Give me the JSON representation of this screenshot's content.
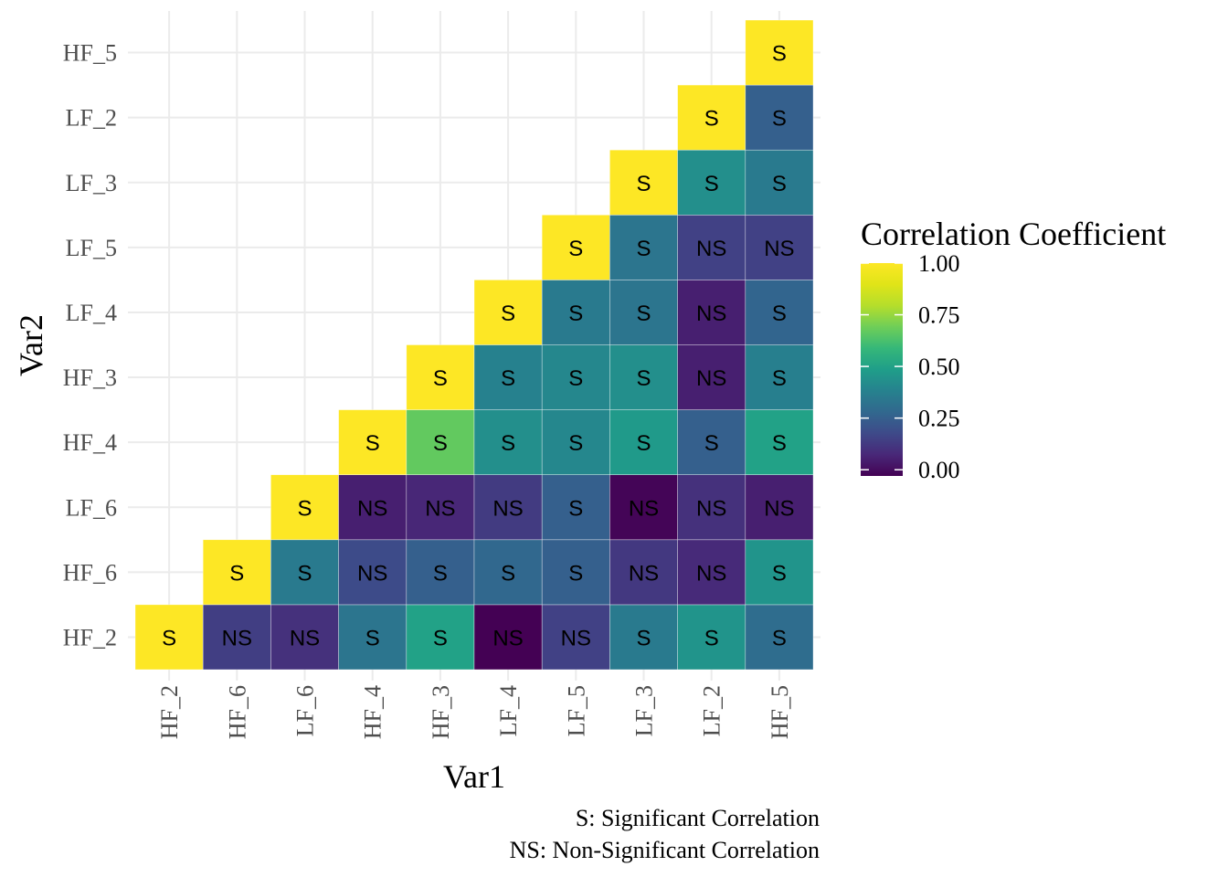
{
  "chart_data": {
    "type": "heatmap",
    "title": "",
    "xlabel": "Var1",
    "ylabel": "Var2",
    "x_categories": [
      "HF_2",
      "HF_6",
      "LF_6",
      "HF_4",
      "HF_3",
      "LF_4",
      "LF_5",
      "LF_3",
      "LF_2",
      "HF_5"
    ],
    "y_categories": [
      "HF_2",
      "HF_6",
      "LF_6",
      "HF_4",
      "HF_3",
      "LF_4",
      "LF_5",
      "LF_3",
      "LF_2",
      "HF_5"
    ],
    "grid": true,
    "legend": {
      "title": "Correlation Coefficient",
      "placement": "right",
      "ticks": [
        1.0,
        0.75,
        0.5,
        0.25,
        0.0
      ],
      "tick_labels": [
        "1.00",
        "0.75",
        "0.50",
        "0.25",
        "0.00"
      ],
      "range": [
        -0.03,
        1.0
      ]
    },
    "caption": [
      "S: Significant Correlation",
      "NS: Non-Significant Correlation"
    ],
    "cells": [
      {
        "x": "HF_2",
        "y": "HF_2",
        "value": 1.0,
        "label": "S"
      },
      {
        "x": "HF_6",
        "y": "HF_2",
        "value": 0.14,
        "label": "NS"
      },
      {
        "x": "LF_6",
        "y": "HF_2",
        "value": 0.1,
        "label": "NS"
      },
      {
        "x": "HF_4",
        "y": "HF_2",
        "value": 0.33,
        "label": "S"
      },
      {
        "x": "HF_3",
        "y": "HF_2",
        "value": 0.5,
        "label": "S"
      },
      {
        "x": "LF_4",
        "y": "HF_2",
        "value": -0.03,
        "label": "NS"
      },
      {
        "x": "LF_5",
        "y": "HF_2",
        "value": 0.15,
        "label": "NS"
      },
      {
        "x": "LF_3",
        "y": "HF_2",
        "value": 0.35,
        "label": "S"
      },
      {
        "x": "LF_2",
        "y": "HF_2",
        "value": 0.45,
        "label": "S"
      },
      {
        "x": "HF_5",
        "y": "HF_2",
        "value": 0.3,
        "label": "S"
      },
      {
        "x": "HF_6",
        "y": "HF_6",
        "value": 1.0,
        "label": "S"
      },
      {
        "x": "LF_6",
        "y": "HF_6",
        "value": 0.35,
        "label": "S"
      },
      {
        "x": "HF_4",
        "y": "HF_6",
        "value": 0.18,
        "label": "NS"
      },
      {
        "x": "HF_3",
        "y": "HF_6",
        "value": 0.25,
        "label": "S"
      },
      {
        "x": "LF_4",
        "y": "HF_6",
        "value": 0.28,
        "label": "S"
      },
      {
        "x": "LF_5",
        "y": "HF_6",
        "value": 0.25,
        "label": "S"
      },
      {
        "x": "LF_3",
        "y": "HF_6",
        "value": 0.12,
        "label": "NS"
      },
      {
        "x": "LF_2",
        "y": "HF_6",
        "value": 0.08,
        "label": "NS"
      },
      {
        "x": "HF_5",
        "y": "HF_6",
        "value": 0.45,
        "label": "S"
      },
      {
        "x": "LF_6",
        "y": "LF_6",
        "value": 1.0,
        "label": "S"
      },
      {
        "x": "HF_4",
        "y": "LF_6",
        "value": 0.05,
        "label": "NS"
      },
      {
        "x": "HF_3",
        "y": "LF_6",
        "value": 0.07,
        "label": "NS"
      },
      {
        "x": "LF_4",
        "y": "LF_6",
        "value": 0.13,
        "label": "NS"
      },
      {
        "x": "LF_5",
        "y": "LF_6",
        "value": 0.25,
        "label": "S"
      },
      {
        "x": "LF_3",
        "y": "LF_6",
        "value": -0.02,
        "label": "NS"
      },
      {
        "x": "LF_2",
        "y": "LF_6",
        "value": 0.1,
        "label": "NS"
      },
      {
        "x": "HF_5",
        "y": "LF_6",
        "value": 0.05,
        "label": "NS"
      },
      {
        "x": "HF_4",
        "y": "HF_4",
        "value": 1.0,
        "label": "S"
      },
      {
        "x": "HF_3",
        "y": "HF_4",
        "value": 0.67,
        "label": "S"
      },
      {
        "x": "LF_4",
        "y": "HF_4",
        "value": 0.43,
        "label": "S"
      },
      {
        "x": "LF_5",
        "y": "HF_4",
        "value": 0.4,
        "label": "S"
      },
      {
        "x": "LF_3",
        "y": "HF_4",
        "value": 0.47,
        "label": "S"
      },
      {
        "x": "LF_2",
        "y": "HF_4",
        "value": 0.25,
        "label": "S"
      },
      {
        "x": "HF_5",
        "y": "HF_4",
        "value": 0.5,
        "label": "S"
      },
      {
        "x": "HF_3",
        "y": "HF_3",
        "value": 1.0,
        "label": "S"
      },
      {
        "x": "LF_4",
        "y": "HF_3",
        "value": 0.38,
        "label": "S"
      },
      {
        "x": "LF_5",
        "y": "HF_3",
        "value": 0.4,
        "label": "S"
      },
      {
        "x": "LF_3",
        "y": "HF_3",
        "value": 0.43,
        "label": "S"
      },
      {
        "x": "LF_2",
        "y": "HF_3",
        "value": 0.05,
        "label": "NS"
      },
      {
        "x": "HF_5",
        "y": "HF_3",
        "value": 0.37,
        "label": "S"
      },
      {
        "x": "LF_4",
        "y": "LF_4",
        "value": 1.0,
        "label": "S"
      },
      {
        "x": "LF_5",
        "y": "LF_4",
        "value": 0.35,
        "label": "S"
      },
      {
        "x": "LF_3",
        "y": "LF_4",
        "value": 0.33,
        "label": "S"
      },
      {
        "x": "LF_2",
        "y": "LF_4",
        "value": 0.05,
        "label": "NS"
      },
      {
        "x": "HF_5",
        "y": "LF_4",
        "value": 0.27,
        "label": "S"
      },
      {
        "x": "LF_5",
        "y": "LF_5",
        "value": 1.0,
        "label": "S"
      },
      {
        "x": "LF_3",
        "y": "LF_5",
        "value": 0.33,
        "label": "S"
      },
      {
        "x": "LF_2",
        "y": "LF_5",
        "value": 0.15,
        "label": "NS"
      },
      {
        "x": "HF_5",
        "y": "LF_5",
        "value": 0.15,
        "label": "NS"
      },
      {
        "x": "LF_3",
        "y": "LF_3",
        "value": 1.0,
        "label": "S"
      },
      {
        "x": "LF_2",
        "y": "LF_3",
        "value": 0.43,
        "label": "S"
      },
      {
        "x": "HF_5",
        "y": "LF_3",
        "value": 0.35,
        "label": "S"
      },
      {
        "x": "LF_2",
        "y": "LF_2",
        "value": 1.0,
        "label": "S"
      },
      {
        "x": "HF_5",
        "y": "LF_2",
        "value": 0.25,
        "label": "S"
      },
      {
        "x": "HF_5",
        "y": "HF_5",
        "value": 1.0,
        "label": "S"
      }
    ]
  }
}
